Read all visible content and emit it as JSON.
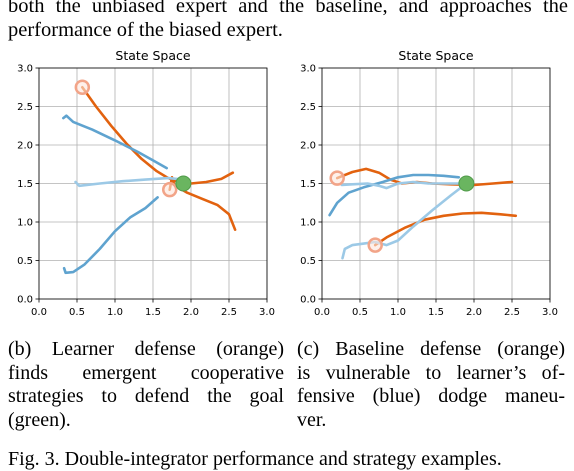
{
  "text_above": {
    "line1": "both the unbiased expert and the baseline, and approaches the",
    "line2": "performance of the biased expert."
  },
  "colors": {
    "orange": "#e2620f",
    "blue": "#5fa3cf",
    "light_blue": "#9cc9e6",
    "light_orange": "#f2a488",
    "green": "#6ab560",
    "grid": "#b0b0b0"
  },
  "chart_data": [
    {
      "type": "line",
      "title": "State Space",
      "xlim": [
        0.0,
        3.0
      ],
      "ylim": [
        0.0,
        3.0
      ],
      "x_ticks": [
        "0.0",
        "0.5",
        "1.0",
        "1.5",
        "2.0",
        "2.5",
        "3.0"
      ],
      "y_ticks": [
        "0.0",
        "0.5",
        "1.0",
        "1.5",
        "2.0",
        "2.5",
        "3.0"
      ],
      "grid": true,
      "goal": {
        "x": 1.9,
        "y": 1.5
      },
      "start_markers": [
        {
          "x": 0.57,
          "y": 2.75,
          "color": "light_orange"
        },
        {
          "x": 1.72,
          "y": 1.42,
          "color": "light_orange"
        }
      ],
      "series": [
        {
          "color": "orange",
          "points": [
            [
              0.57,
              2.75
            ],
            [
              0.75,
              2.5
            ],
            [
              0.95,
              2.25
            ],
            [
              1.15,
              2.02
            ],
            [
              1.35,
              1.82
            ],
            [
              1.55,
              1.66
            ],
            [
              1.7,
              1.57
            ],
            [
              1.8,
              1.53
            ],
            [
              2.0,
              1.5
            ],
            [
              2.2,
              1.52
            ],
            [
              2.4,
              1.56
            ],
            [
              2.55,
              1.64
            ]
          ]
        },
        {
          "color": "orange",
          "points": [
            [
              1.72,
              1.42
            ],
            [
              1.75,
              1.58
            ],
            [
              1.78,
              1.48
            ],
            [
              1.95,
              1.38
            ],
            [
              2.15,
              1.3
            ],
            [
              2.35,
              1.22
            ],
            [
              2.5,
              1.1
            ],
            [
              2.58,
              0.9
            ]
          ]
        },
        {
          "color": "blue",
          "points": [
            [
              0.32,
              2.35
            ],
            [
              0.36,
              2.38
            ],
            [
              0.45,
              2.3
            ],
            [
              0.7,
              2.2
            ],
            [
              1.0,
              2.06
            ],
            [
              1.3,
              1.91
            ],
            [
              1.5,
              1.8
            ],
            [
              1.68,
              1.7
            ]
          ]
        },
        {
          "color": "light_blue",
          "points": [
            [
              0.48,
              1.52
            ],
            [
              0.53,
              1.47
            ],
            [
              0.8,
              1.5
            ],
            [
              1.1,
              1.53
            ],
            [
              1.4,
              1.55
            ],
            [
              1.7,
              1.57
            ],
            [
              1.9,
              1.55
            ]
          ]
        },
        {
          "color": "blue",
          "points": [
            [
              0.33,
              0.4
            ],
            [
              0.35,
              0.34
            ],
            [
              0.45,
              0.35
            ],
            [
              0.6,
              0.45
            ],
            [
              0.8,
              0.65
            ],
            [
              1.0,
              0.88
            ],
            [
              1.2,
              1.06
            ],
            [
              1.4,
              1.18
            ],
            [
              1.56,
              1.32
            ]
          ]
        }
      ]
    },
    {
      "type": "line",
      "title": "State Space",
      "xlim": [
        0.0,
        3.0
      ],
      "ylim": [
        0.0,
        3.0
      ],
      "x_ticks": [
        "0.0",
        "0.5",
        "1.0",
        "1.5",
        "2.0",
        "2.5",
        "3.0"
      ],
      "y_ticks": [
        "0.0",
        "0.5",
        "1.0",
        "1.5",
        "2.0",
        "2.5",
        "3.0"
      ],
      "grid": true,
      "goal": {
        "x": 1.9,
        "y": 1.5
      },
      "start_markers": [
        {
          "x": 0.2,
          "y": 1.57,
          "color": "light_orange"
        },
        {
          "x": 0.7,
          "y": 0.7,
          "color": "light_orange"
        }
      ],
      "series": [
        {
          "color": "orange",
          "points": [
            [
              0.2,
              1.57
            ],
            [
              0.4,
              1.65
            ],
            [
              0.58,
              1.69
            ],
            [
              0.75,
              1.64
            ],
            [
              0.9,
              1.55
            ],
            [
              1.05,
              1.5
            ],
            [
              1.25,
              1.52
            ],
            [
              1.45,
              1.5
            ],
            [
              1.7,
              1.49
            ],
            [
              2.0,
              1.48
            ],
            [
              2.25,
              1.5
            ],
            [
              2.5,
              1.52
            ]
          ]
        },
        {
          "color": "orange",
          "points": [
            [
              0.7,
              0.7
            ],
            [
              0.85,
              0.8
            ],
            [
              1.1,
              0.93
            ],
            [
              1.35,
              1.03
            ],
            [
              1.6,
              1.08
            ],
            [
              1.85,
              1.11
            ],
            [
              2.1,
              1.12
            ],
            [
              2.35,
              1.1
            ],
            [
              2.55,
              1.08
            ]
          ]
        },
        {
          "color": "blue",
          "points": [
            [
              0.1,
              1.09
            ],
            [
              0.2,
              1.25
            ],
            [
              0.35,
              1.38
            ],
            [
              0.55,
              1.45
            ],
            [
              0.8,
              1.52
            ],
            [
              1.0,
              1.58
            ],
            [
              1.2,
              1.61
            ],
            [
              1.4,
              1.61
            ],
            [
              1.6,
              1.6
            ],
            [
              1.8,
              1.58
            ]
          ]
        },
        {
          "color": "light_blue",
          "points": [
            [
              0.26,
              1.48
            ],
            [
              0.4,
              1.49
            ],
            [
              0.6,
              1.5
            ],
            [
              0.75,
              1.47
            ],
            [
              0.85,
              1.44
            ],
            [
              1.0,
              1.5
            ],
            [
              1.2,
              1.52
            ],
            [
              1.4,
              1.5
            ],
            [
              1.65,
              1.5
            ],
            [
              1.9,
              1.5
            ]
          ]
        },
        {
          "color": "light_blue",
          "points": [
            [
              0.27,
              0.53
            ],
            [
              0.3,
              0.65
            ],
            [
              0.4,
              0.7
            ],
            [
              0.55,
              0.72
            ],
            [
              0.7,
              0.74
            ],
            [
              0.85,
              0.7
            ],
            [
              1.0,
              0.76
            ],
            [
              1.2,
              0.94
            ],
            [
              1.45,
              1.15
            ],
            [
              1.7,
              1.35
            ],
            [
              1.9,
              1.5
            ]
          ]
        }
      ]
    }
  ],
  "captions": {
    "b": {
      "line1": "(b) Learner defense (orange)",
      "line2": "finds emergent cooperative",
      "line3": "strategies to defend the goal",
      "line4": "(green)."
    },
    "c": {
      "line1": "(c) Baseline defense (orange)",
      "line2": "is vulnerable to learner’s of-",
      "line3": "fensive (blue) dodge maneu-",
      "line4": "ver."
    }
  },
  "figure_caption": "Fig. 3.   Double-integrator performance and strategy examples."
}
